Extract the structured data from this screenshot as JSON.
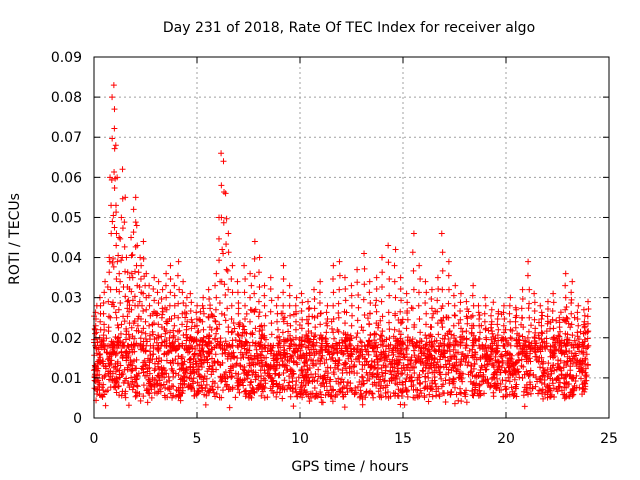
{
  "chart_data": {
    "type": "scatter",
    "title": "Day 231 of 2018, Rate Of TEC Index for receiver algo",
    "xlabel": "GPS time / hours",
    "ylabel": "ROTI / TECUs",
    "xlim": [
      0,
      25
    ],
    "ylim": [
      0,
      0.09
    ],
    "x_ticks": [
      "0",
      "5",
      "10",
      "15",
      "20",
      "25"
    ],
    "y_ticks": [
      "0",
      "0.01",
      "0.02",
      "0.03",
      "0.04",
      "0.05",
      "0.06",
      "0.07",
      "0.08",
      "0.09"
    ],
    "grid": true,
    "marker": "+",
    "color": "#ff0000",
    "series": [
      {
        "name": "ROTI",
        "x": [
          0.1,
          0.3,
          0.5,
          0.7,
          0.8,
          0.9,
          0.95,
          1.0,
          1.05,
          1.1,
          1.2,
          1.3,
          1.4,
          1.5,
          1.6,
          1.7,
          1.8,
          1.9,
          2.0,
          2.1,
          2.2,
          2.3,
          2.4,
          2.5,
          2.7,
          2.9,
          3.1,
          3.3,
          3.5,
          3.7,
          3.9,
          4.1,
          4.3,
          4.5,
          4.7,
          5.0,
          5.3,
          5.6,
          5.9,
          6.1,
          6.2,
          6.3,
          6.4,
          6.5,
          6.7,
          7.0,
          7.3,
          7.6,
          7.8,
          8.0,
          8.3,
          8.6,
          8.9,
          9.2,
          9.5,
          9.8,
          10.1,
          10.4,
          10.7,
          11.0,
          11.3,
          11.6,
          11.9,
          12.2,
          12.5,
          12.8,
          13.1,
          13.4,
          13.7,
          14.0,
          14.3,
          14.6,
          14.9,
          15.2,
          15.5,
          15.8,
          16.1,
          16.4,
          16.7,
          16.9,
          17.2,
          17.5,
          17.8,
          18.1,
          18.4,
          18.7,
          19.0,
          19.3,
          19.6,
          19.9,
          20.2,
          20.5,
          20.8,
          21.1,
          21.4,
          21.7,
          22.0,
          22.3,
          22.6,
          22.9,
          23.2,
          23.5,
          23.8,
          24.0
        ],
        "y": [
          0.028,
          0.03,
          0.034,
          0.04,
          0.06,
          0.08,
          0.083,
          0.077,
          0.068,
          0.06,
          0.045,
          0.05,
          0.062,
          0.055,
          0.04,
          0.035,
          0.045,
          0.052,
          0.055,
          0.048,
          0.04,
          0.038,
          0.044,
          0.036,
          0.033,
          0.035,
          0.034,
          0.032,
          0.036,
          0.038,
          0.033,
          0.039,
          0.034,
          0.03,
          0.031,
          0.028,
          0.03,
          0.032,
          0.036,
          0.05,
          0.066,
          0.064,
          0.056,
          0.046,
          0.038,
          0.034,
          0.038,
          0.036,
          0.044,
          0.04,
          0.033,
          0.035,
          0.03,
          0.038,
          0.033,
          0.03,
          0.031,
          0.029,
          0.032,
          0.034,
          0.028,
          0.038,
          0.039,
          0.035,
          0.033,
          0.037,
          0.041,
          0.034,
          0.035,
          0.04,
          0.043,
          0.042,
          0.035,
          0.031,
          0.046,
          0.038,
          0.034,
          0.032,
          0.035,
          0.046,
          0.039,
          0.033,
          0.031,
          0.029,
          0.033,
          0.028,
          0.03,
          0.027,
          0.026,
          0.028,
          0.03,
          0.027,
          0.032,
          0.039,
          0.031,
          0.028,
          0.029,
          0.031,
          0.025,
          0.036,
          0.034,
          0.028,
          0.027,
          0.029
        ]
      }
    ],
    "floor_band": {
      "low": 0.005,
      "high": 0.02
    }
  }
}
